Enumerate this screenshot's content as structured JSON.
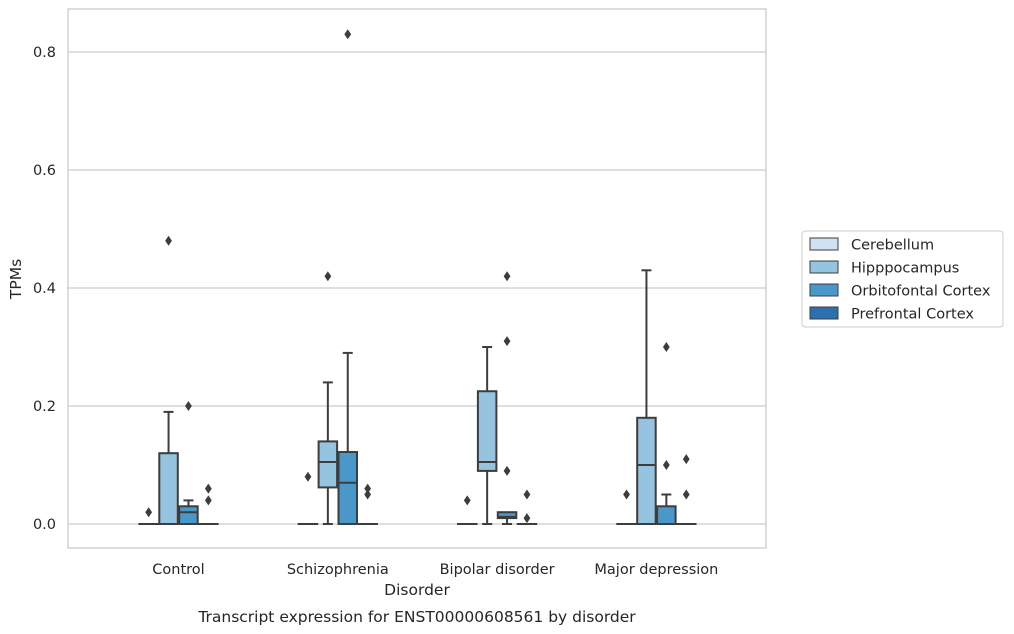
{
  "chart_data": {
    "type": "box",
    "title": "",
    "caption": "Transcript expression for ENST00000608561 by disorder",
    "xlabel": "Disorder",
    "ylabel": "TPMs",
    "ylim": [
      -0.04,
      0.872
    ],
    "yticks": [
      0.0,
      0.2,
      0.4,
      0.6,
      0.8
    ],
    "ytick_labels": [
      "0.0",
      "0.2",
      "0.4",
      "0.6",
      "0.8"
    ],
    "grid": "horizontal",
    "legend_position": "right",
    "categories": [
      "Control",
      "Schizophrenia",
      "Bipolar disorder",
      "Major depression"
    ],
    "series": [
      {
        "name": "Cerebellum",
        "color": "#d0e1f2",
        "boxes": [
          {
            "q1": 0,
            "median": 0,
            "q3": 0,
            "whisker_low": 0,
            "whisker_high": 0,
            "outliers": [
              0.02
            ]
          },
          {
            "q1": 0,
            "median": 0,
            "q3": 0,
            "whisker_low": 0,
            "whisker_high": 0,
            "outliers": [
              0.08
            ]
          },
          {
            "q1": 0,
            "median": 0,
            "q3": 0,
            "whisker_low": 0,
            "whisker_high": 0,
            "outliers": [
              0.04
            ]
          },
          {
            "q1": 0,
            "median": 0,
            "q3": 0,
            "whisker_low": 0,
            "whisker_high": 0,
            "outliers": [
              0.05
            ]
          }
        ]
      },
      {
        "name": "Hipppocampus",
        "color": "#94c4df",
        "boxes": [
          {
            "q1": 0,
            "median": 0,
            "q3": 0.12,
            "whisker_low": 0,
            "whisker_high": 0.19,
            "outliers": [
              0.48
            ]
          },
          {
            "q1": 0.062,
            "median": 0.105,
            "q3": 0.14,
            "whisker_low": 0,
            "whisker_high": 0.24,
            "outliers": [
              0.42
            ]
          },
          {
            "q1": 0.09,
            "median": 0.105,
            "q3": 0.225,
            "whisker_low": 0,
            "whisker_high": 0.3,
            "outliers": []
          },
          {
            "q1": 0,
            "median": 0.1,
            "q3": 0.18,
            "whisker_low": 0,
            "whisker_high": 0.43,
            "outliers": []
          }
        ]
      },
      {
        "name": "Orbitofontal Cortex",
        "color": "#4a98c9",
        "boxes": [
          {
            "q1": 0,
            "median": 0.02,
            "q3": 0.03,
            "whisker_low": 0,
            "whisker_high": 0.04,
            "outliers": [
              0.2
            ]
          },
          {
            "q1": 0,
            "median": 0.07,
            "q3": 0.122,
            "whisker_low": 0,
            "whisker_high": 0.29,
            "outliers": [
              0.83
            ]
          },
          {
            "q1": 0.01,
            "median": 0.012,
            "q3": 0.02,
            "whisker_low": 0,
            "whisker_high": 0.02,
            "outliers": [
              0.42,
              0.31,
              0.09
            ]
          },
          {
            "q1": 0,
            "median": 0,
            "q3": 0.03,
            "whisker_low": 0,
            "whisker_high": 0.05,
            "outliers": [
              0.3,
              0.1
            ]
          }
        ]
      },
      {
        "name": "Prefrontal Cortex",
        "color": "#2e6faf",
        "boxes": [
          {
            "q1": 0,
            "median": 0,
            "q3": 0,
            "whisker_low": 0,
            "whisker_high": 0,
            "outliers": [
              0.06,
              0.04
            ]
          },
          {
            "q1": 0,
            "median": 0,
            "q3": 0,
            "whisker_low": 0,
            "whisker_high": 0,
            "outliers": [
              0.06,
              0.05
            ]
          },
          {
            "q1": 0,
            "median": 0,
            "q3": 0,
            "whisker_low": 0,
            "whisker_high": 0,
            "outliers": [
              0.05,
              0.01
            ]
          },
          {
            "q1": 0,
            "median": 0,
            "q3": 0,
            "whisker_low": 0,
            "whisker_high": 0,
            "outliers": [
              0.11,
              0.05
            ]
          }
        ]
      }
    ]
  }
}
